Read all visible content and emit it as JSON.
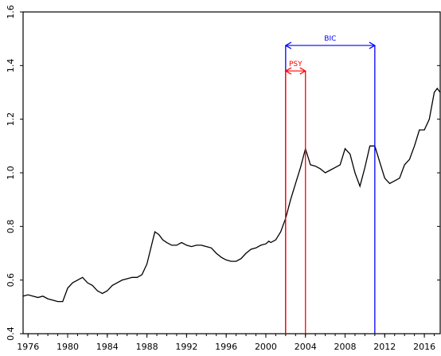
{
  "chart_data": {
    "type": "line",
    "xlim": [
      1975.5,
      2017.6
    ],
    "ylim": [
      0.4,
      1.6
    ],
    "y_ticks": [
      0.4,
      0.6,
      0.8,
      1.0,
      1.2,
      1.4,
      1.6
    ],
    "y_tick_labels": [
      "0.4",
      "0.6",
      "0.8",
      "1.0",
      "1.2",
      "1.4",
      "1.6"
    ],
    "x_ticks": [
      1976,
      1980,
      1984,
      1988,
      1992,
      1996,
      2000,
      2004,
      2008,
      2012,
      2016
    ],
    "x_tick_labels": [
      "1976",
      "1980",
      "1984",
      "1988",
      "1992",
      "1996",
      "2000",
      "2004",
      "2008",
      "2012",
      "2016"
    ],
    "grid": false,
    "series": [
      {
        "color": "#000000",
        "points": [
          [
            1975.5,
            0.54
          ],
          [
            1976.0,
            0.545
          ],
          [
            1976.5,
            0.54
          ],
          [
            1977.0,
            0.535
          ],
          [
            1977.5,
            0.54
          ],
          [
            1978.0,
            0.53
          ],
          [
            1978.5,
            0.525
          ],
          [
            1979.0,
            0.52
          ],
          [
            1979.5,
            0.52
          ],
          [
            1980.0,
            0.57
          ],
          [
            1980.5,
            0.59
          ],
          [
            1981.0,
            0.6
          ],
          [
            1981.5,
            0.61
          ],
          [
            1982.0,
            0.59
          ],
          [
            1982.5,
            0.58
          ],
          [
            1983.0,
            0.56
          ],
          [
            1983.5,
            0.55
          ],
          [
            1984.0,
            0.56
          ],
          [
            1984.5,
            0.58
          ],
          [
            1985.0,
            0.59
          ],
          [
            1985.5,
            0.6
          ],
          [
            1986.0,
            0.605
          ],
          [
            1986.5,
            0.61
          ],
          [
            1987.0,
            0.61
          ],
          [
            1987.5,
            0.62
          ],
          [
            1988.0,
            0.66
          ],
          [
            1988.4,
            0.72
          ],
          [
            1988.8,
            0.78
          ],
          [
            1989.2,
            0.77
          ],
          [
            1989.6,
            0.75
          ],
          [
            1990.0,
            0.74
          ],
          [
            1990.5,
            0.73
          ],
          [
            1991.0,
            0.73
          ],
          [
            1991.5,
            0.74
          ],
          [
            1992.0,
            0.73
          ],
          [
            1992.5,
            0.725
          ],
          [
            1993.0,
            0.73
          ],
          [
            1993.5,
            0.73
          ],
          [
            1994.0,
            0.725
          ],
          [
            1994.5,
            0.72
          ],
          [
            1995.0,
            0.7
          ],
          [
            1995.5,
            0.685
          ],
          [
            1996.0,
            0.675
          ],
          [
            1996.5,
            0.67
          ],
          [
            1997.0,
            0.67
          ],
          [
            1997.5,
            0.68
          ],
          [
            1998.0,
            0.7
          ],
          [
            1998.5,
            0.715
          ],
          [
            1999.0,
            0.72
          ],
          [
            1999.5,
            0.73
          ],
          [
            2000.0,
            0.735
          ],
          [
            2000.3,
            0.745
          ],
          [
            2000.5,
            0.74
          ],
          [
            2001.0,
            0.75
          ],
          [
            2001.5,
            0.78
          ],
          [
            2002.0,
            0.83
          ],
          [
            2002.5,
            0.9
          ],
          [
            2003.0,
            0.96
          ],
          [
            2003.5,
            1.02
          ],
          [
            2004.0,
            1.09
          ],
          [
            2004.5,
            1.03
          ],
          [
            2005.0,
            1.025
          ],
          [
            2005.5,
            1.015
          ],
          [
            2006.0,
            1.0
          ],
          [
            2006.5,
            1.01
          ],
          [
            2007.0,
            1.02
          ],
          [
            2007.5,
            1.03
          ],
          [
            2008.0,
            1.09
          ],
          [
            2008.5,
            1.07
          ],
          [
            2009.0,
            1.0
          ],
          [
            2009.5,
            0.95
          ],
          [
            2010.0,
            1.02
          ],
          [
            2010.5,
            1.1
          ],
          [
            2011.0,
            1.1
          ],
          [
            2011.5,
            1.04
          ],
          [
            2012.0,
            0.98
          ],
          [
            2012.5,
            0.96
          ],
          [
            2013.0,
            0.97
          ],
          [
            2013.5,
            0.98
          ],
          [
            2014.0,
            1.03
          ],
          [
            2014.5,
            1.05
          ],
          [
            2015.0,
            1.1
          ],
          [
            2015.5,
            1.16
          ],
          [
            2016.0,
            1.16
          ],
          [
            2016.5,
            1.2
          ],
          [
            2017.0,
            1.3
          ],
          [
            2017.3,
            1.315
          ],
          [
            2017.6,
            1.3
          ]
        ]
      }
    ],
    "annotations": [
      {
        "text": "BIC",
        "color": "#0000ff",
        "x_start": 2002.0,
        "x_end": 2011.0,
        "y_arrow": 1.475
      },
      {
        "text": "PSY",
        "color": "#ff0000",
        "x_start": 2002.0,
        "x_end": 2004.0,
        "y_arrow": 1.38
      }
    ]
  }
}
